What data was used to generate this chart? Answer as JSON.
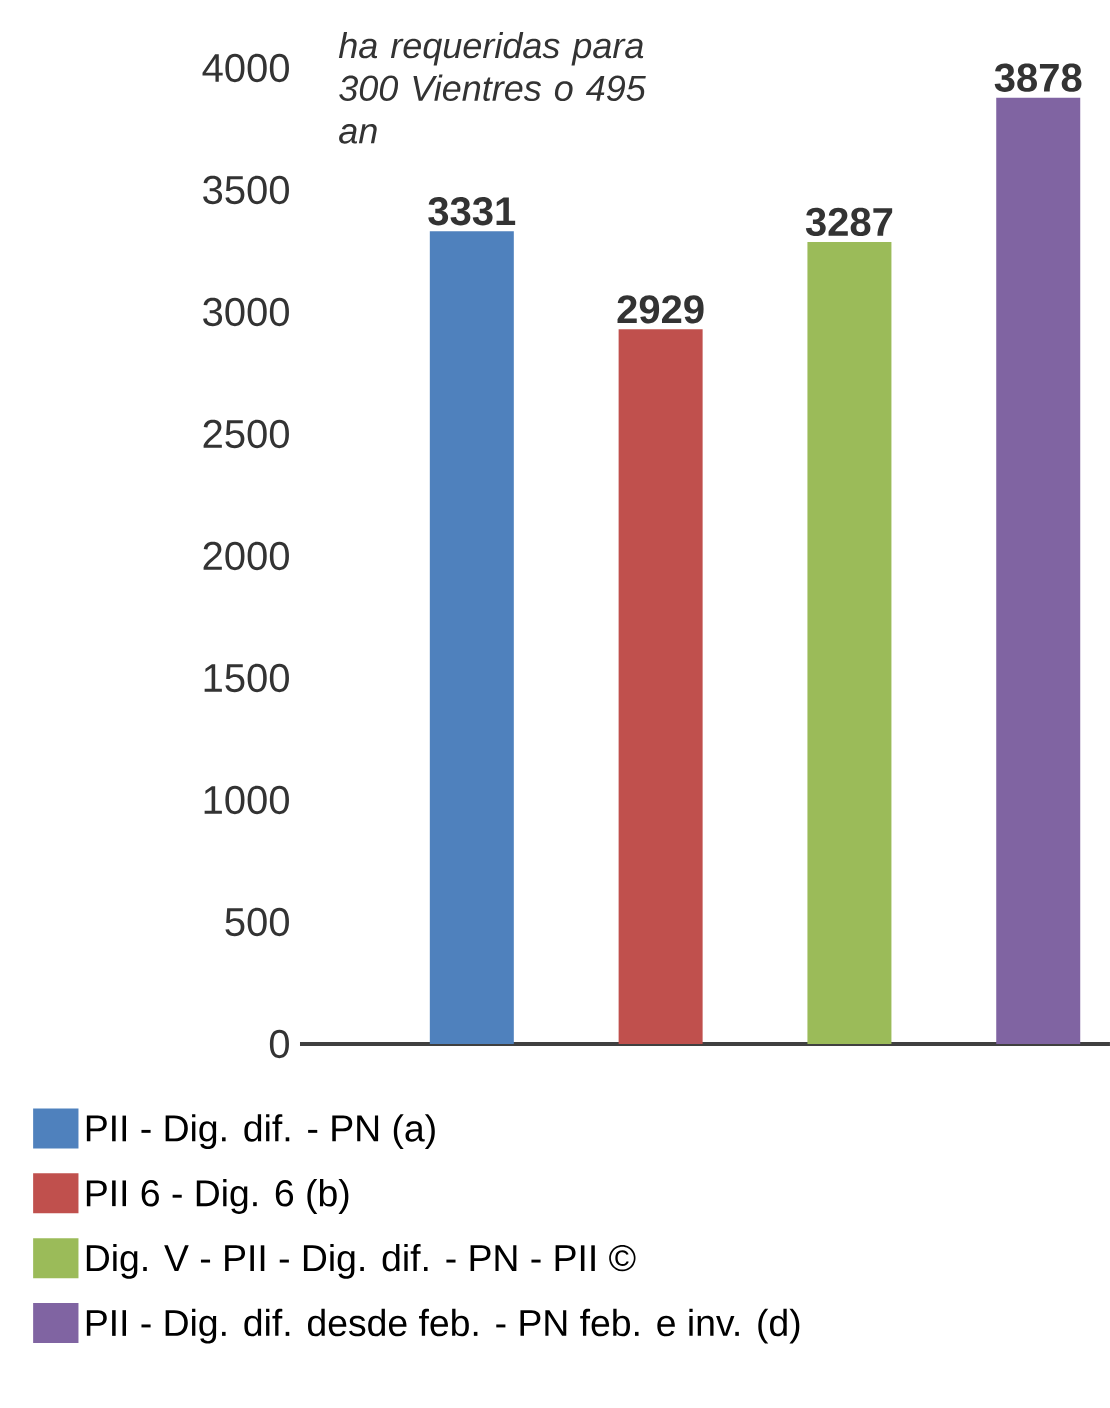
{
  "chart_data": {
    "type": "bar",
    "categories": [
      null,
      null,
      null,
      null
    ],
    "series": [
      {
        "name": "PII - Dig. dif. - PN (a)",
        "color": "#4f81bd",
        "values": [
          3331,
          null,
          null,
          null
        ]
      },
      {
        "name": "PII 6 - Dig. 6 (b)",
        "color": "#c0504d",
        "values": [
          null,
          2929,
          null,
          null
        ]
      },
      {
        "name": "Dig. V - PII - Dig. dif. - PN - PII ©",
        "color": "#9bbb59",
        "values": [
          null,
          null,
          3287,
          null
        ]
      },
      {
        "name": "PII - Dig. dif. desde feb. - PN feb. e inv. (d)",
        "color": "#8064a2",
        "values": [
          null,
          null,
          null,
          3878
        ]
      }
    ],
    "ylim": [
      0,
      4000
    ],
    "yticks": [
      0,
      500,
      1000,
      1500,
      2000,
      2500,
      3000,
      3500,
      4000
    ],
    "annotations": [
      "ha requeridas para 300 Vientres o 495 an"
    ],
    "data_labels": true,
    "grid": false,
    "legend": "bottom"
  }
}
